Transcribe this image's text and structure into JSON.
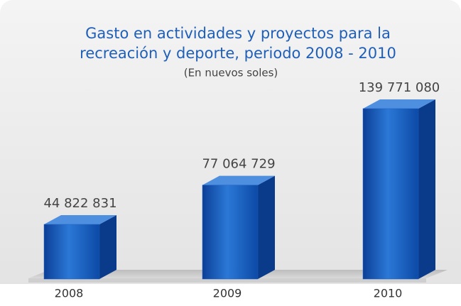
{
  "chart_data": {
    "type": "bar3d",
    "title": [
      "Gasto en actividades y proyectos para la",
      "recreación y deporte, periodo 2008 - 2010"
    ],
    "subtitle": "(En nuevos soles)",
    "categories": [
      "2008",
      "2009",
      "2010"
    ],
    "values": [
      44822831,
      77064729,
      139771080
    ],
    "value_labels": [
      "44 822 831",
      "77 064 729",
      "139 771 080"
    ],
    "color": "#1f5fbf"
  }
}
